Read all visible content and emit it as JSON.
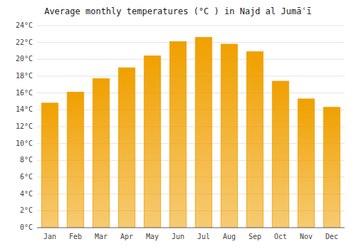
{
  "chart_data": {
    "type": "bar",
    "title": "Average monthly temperatures (°C ) in Najd al Jumāʿī",
    "categories": [
      "Jan",
      "Feb",
      "Mar",
      "Apr",
      "May",
      "Jun",
      "Jul",
      "Aug",
      "Sep",
      "Oct",
      "Nov",
      "Dec"
    ],
    "values": [
      14.8,
      16.1,
      17.7,
      19.0,
      20.4,
      22.1,
      22.6,
      21.8,
      20.9,
      17.4,
      15.3,
      14.3
    ],
    "color": "#F0A000",
    "ylim": [
      0,
      24
    ],
    "yticks": [
      {
        "value": 0,
        "label": "0°C"
      },
      {
        "value": 2,
        "label": "2°C"
      },
      {
        "value": 4,
        "label": "4°C"
      },
      {
        "value": 6,
        "label": "6°C"
      },
      {
        "value": 8,
        "label": "8°C"
      },
      {
        "value": 10,
        "label": "10°C"
      },
      {
        "value": 12,
        "label": "12°C"
      },
      {
        "value": 14,
        "label": "14°C"
      },
      {
        "value": 16,
        "label": "16°C"
      },
      {
        "value": 18,
        "label": "18°C"
      },
      {
        "value": 20,
        "label": "20°C"
      },
      {
        "value": 22,
        "label": "22°C"
      },
      {
        "value": 24,
        "label": "24°C"
      }
    ],
    "grid": true
  }
}
